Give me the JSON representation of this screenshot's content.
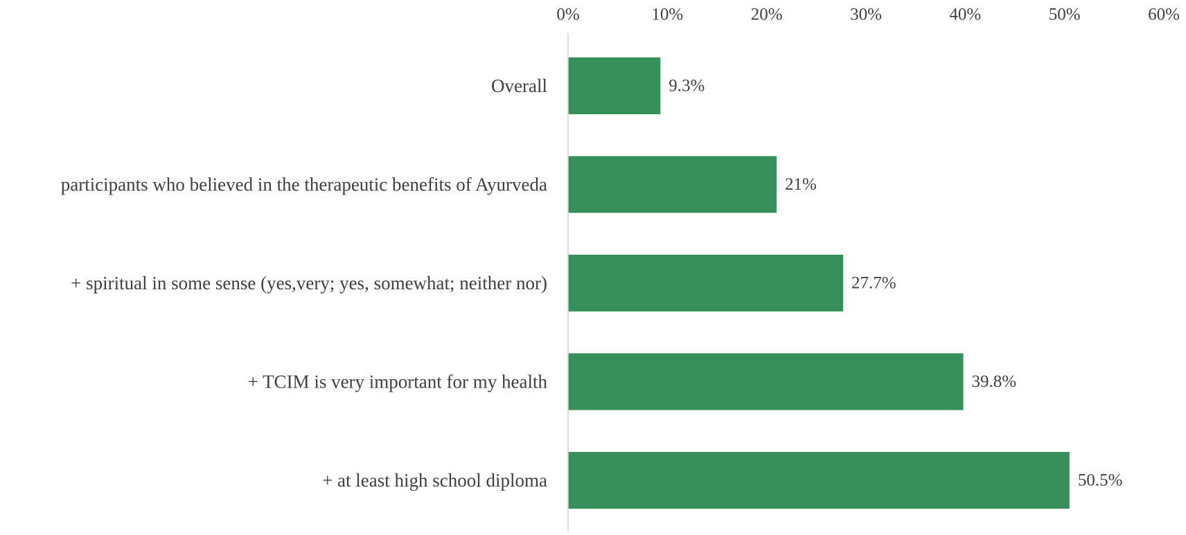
{
  "chart_data": {
    "type": "bar",
    "orientation": "horizontal",
    "categories": [
      "Overall",
      "participants who believed in the therapeutic benefits of Ayurveda",
      "+ spiritual in some sense (yes,very; yes, somewhat; neither nor)",
      "+ TCIM is very important for my health",
      "+ at least high school diploma"
    ],
    "values": [
      9.3,
      21,
      27.7,
      39.8,
      50.5
    ],
    "data_labels": [
      "9.3%",
      "21%",
      "27.7%",
      "39.8%",
      "50.5%"
    ],
    "x_ticks": [
      "0%",
      "10%",
      "20%",
      "30%",
      "40%",
      "50%",
      "60%"
    ],
    "xlim": [
      0,
      60
    ],
    "x_axis_position": "top",
    "grid": false,
    "legend": "none",
    "bar_color": "#378F5A",
    "axis_color": "#d0d0d0"
  }
}
